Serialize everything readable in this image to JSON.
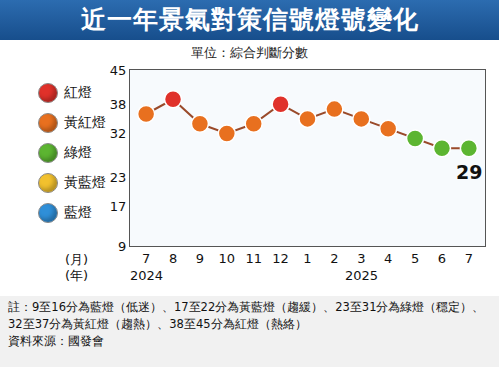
{
  "chart_data": {
    "type": "line",
    "title": "近一年景氣對策信號燈號變化",
    "subtitle": "單位：綜合判斷分數",
    "categories": [
      "7",
      "8",
      "9",
      "10",
      "11",
      "12",
      "1",
      "2",
      "3",
      "4",
      "5",
      "6",
      "7"
    ],
    "x_label": "(月)",
    "year_axis_label": "(年)",
    "year_labels": [
      {
        "index": 0,
        "text": "2024"
      },
      {
        "index": 8,
        "text": "2025"
      }
    ],
    "series": [
      {
        "name": "綜合判斷分數",
        "color": "#9a4a2a",
        "marker": "circle",
        "values": [
          36,
          39,
          34,
          32,
          34,
          38,
          35,
          37,
          35,
          33,
          31,
          29,
          29
        ],
        "colors": [
          "#e8701f",
          "#e0312a",
          "#e8701f",
          "#e8701f",
          "#e8701f",
          "#e0312a",
          "#e8701f",
          "#e8701f",
          "#e8701f",
          "#e8701f",
          "#5cb531",
          "#5cb531",
          "#5cb531"
        ]
      }
    ],
    "annotations": [
      {
        "index": 12,
        "text": "29"
      }
    ],
    "ylim": [
      9,
      45
    ],
    "yticks": [
      9,
      17,
      23,
      32,
      38,
      45
    ],
    "grid": false,
    "legend_items": [
      {
        "name": "紅燈",
        "color": "#e0312a"
      },
      {
        "name": "黃紅燈",
        "color": "#e8701f"
      },
      {
        "name": "綠燈",
        "color": "#5cb531"
      },
      {
        "name": "黃藍燈",
        "color": "#f2c12e"
      },
      {
        "name": "藍燈",
        "color": "#2f8fd8"
      }
    ],
    "notes": [
      "註：9至16分為藍燈（低迷）、17至22分為黃藍燈（趨緩）、23至31分為綠燈（穩定）、32至37分為黃紅燈（趨熱）、38至45分為紅燈（熱絡）",
      "資料來源：國發會"
    ]
  }
}
